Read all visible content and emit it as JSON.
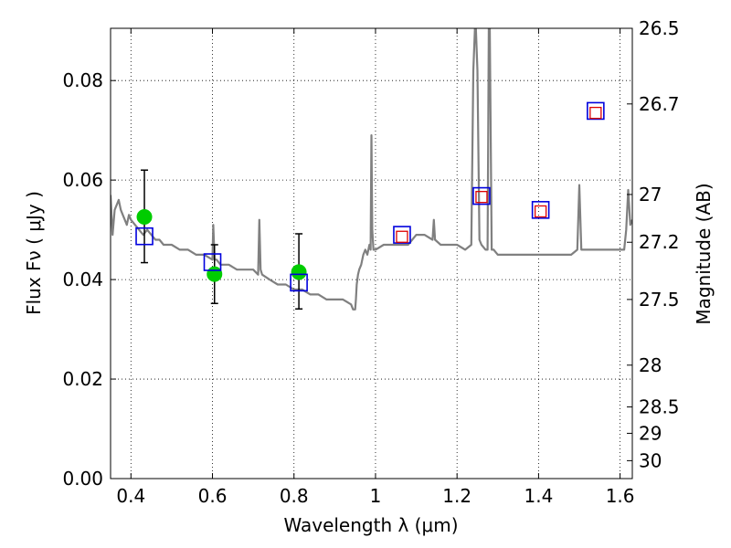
{
  "chart_data": {
    "type": "scatter",
    "xlabel": "Wavelength  λ (μm)",
    "ylabel": "Flux  Fν  ( μJy )",
    "ylabel_right": "Magnitude (AB)",
    "xlim": [
      0.35,
      1.63
    ],
    "ylim": [
      0.0,
      0.0905
    ],
    "grid": true,
    "x_ticks": [
      0.4,
      0.6,
      0.8,
      1.0,
      1.2,
      1.4,
      1.6
    ],
    "x_tick_labels": [
      "0.4",
      "0.6",
      "0.8",
      "1",
      "1.2",
      "1.4",
      "1.6"
    ],
    "y_ticks": [
      0.0,
      0.02,
      0.04,
      0.06,
      0.08
    ],
    "y_tick_labels": [
      "0.00",
      "0.02",
      "0.04",
      "0.06",
      "0.08"
    ],
    "right_ticks": [
      {
        "label": "26.5",
        "flux": 0.0905
      },
      {
        "label": "26.7",
        "flux": 0.0753
      },
      {
        "label": "27",
        "flux": 0.0571
      },
      {
        "label": "27.2",
        "flux": 0.0475
      },
      {
        "label": "27.5",
        "flux": 0.036
      },
      {
        "label": "28",
        "flux": 0.0228
      },
      {
        "label": "28.5",
        "flux": 0.0144
      },
      {
        "label": "29",
        "flux": 0.0091
      },
      {
        "label": "30",
        "flux": 0.0036
      }
    ],
    "series": [
      {
        "kind": "line",
        "color": "#808080",
        "x": [
          0.35,
          0.355,
          0.36,
          0.365,
          0.37,
          0.375,
          0.38,
          0.385,
          0.39,
          0.395,
          0.4,
          0.41,
          0.42,
          0.43,
          0.44,
          0.45,
          0.46,
          0.47,
          0.48,
          0.49,
          0.5,
          0.52,
          0.54,
          0.56,
          0.58,
          0.6,
          0.602,
          0.605,
          0.61,
          0.62,
          0.64,
          0.66,
          0.68,
          0.7,
          0.712,
          0.715,
          0.718,
          0.722,
          0.74,
          0.76,
          0.78,
          0.8,
          0.82,
          0.84,
          0.86,
          0.88,
          0.9,
          0.92,
          0.94,
          0.945,
          0.95,
          0.952,
          0.954,
          0.957,
          0.96,
          0.965,
          0.97,
          0.975,
          0.98,
          0.985,
          0.988,
          0.99,
          0.992,
          0.995,
          1.0,
          1.02,
          1.04,
          1.06,
          1.08,
          1.1,
          1.12,
          1.14,
          1.143,
          1.146,
          1.16,
          1.18,
          1.2,
          1.22,
          1.235,
          1.24,
          1.245,
          1.25,
          1.255,
          1.26,
          1.27,
          1.275,
          1.278,
          1.28,
          1.285,
          1.29,
          1.3,
          1.32,
          1.34,
          1.36,
          1.38,
          1.4,
          1.42,
          1.44,
          1.46,
          1.48,
          1.495,
          1.5,
          1.505,
          1.51,
          1.52,
          1.54,
          1.56,
          1.58,
          1.6,
          1.61,
          1.615,
          1.62,
          1.625,
          1.63
        ],
        "y": [
          0.057,
          0.049,
          0.054,
          0.055,
          0.056,
          0.054,
          0.053,
          0.052,
          0.051,
          0.053,
          0.052,
          0.051,
          0.05,
          0.049,
          0.05,
          0.049,
          0.048,
          0.048,
          0.047,
          0.047,
          0.047,
          0.046,
          0.046,
          0.045,
          0.045,
          0.044,
          0.051,
          0.044,
          0.044,
          0.043,
          0.043,
          0.042,
          0.042,
          0.042,
          0.041,
          0.052,
          0.042,
          0.041,
          0.04,
          0.039,
          0.039,
          0.038,
          0.038,
          0.037,
          0.037,
          0.036,
          0.036,
          0.036,
          0.035,
          0.034,
          0.034,
          0.036,
          0.039,
          0.041,
          0.042,
          0.043,
          0.045,
          0.046,
          0.045,
          0.047,
          0.046,
          0.069,
          0.05,
          0.046,
          0.046,
          0.047,
          0.047,
          0.047,
          0.047,
          0.049,
          0.049,
          0.048,
          0.052,
          0.048,
          0.047,
          0.047,
          0.047,
          0.046,
          0.047,
          0.082,
          0.093,
          0.082,
          0.048,
          0.047,
          0.046,
          0.046,
          0.093,
          0.093,
          0.046,
          0.046,
          0.045,
          0.045,
          0.045,
          0.045,
          0.045,
          0.045,
          0.045,
          0.045,
          0.045,
          0.045,
          0.046,
          0.059,
          0.046,
          0.046,
          0.046,
          0.046,
          0.046,
          0.046,
          0.046,
          0.046,
          0.05,
          0.058,
          0.051,
          0.052
        ]
      },
      {
        "kind": "errorbar",
        "color": "#000000",
        "x": [
          0.433,
          0.605,
          0.812
        ],
        "y": [
          0.0526,
          0.0411,
          0.0415
        ],
        "yerr_low": [
          0.0434,
          0.0352,
          0.0341
        ],
        "yerr_high": [
          0.062,
          0.047,
          0.0492
        ]
      },
      {
        "kind": "scatter",
        "marker": "circle",
        "color": "#00cc00",
        "x": [
          0.433,
          0.605,
          0.812
        ],
        "y": [
          0.0526,
          0.0411,
          0.0415
        ]
      },
      {
        "kind": "scatter",
        "marker": "square-open",
        "color": "#0000dd",
        "x": [
          0.433,
          0.6,
          0.812,
          1.065,
          1.26,
          1.405,
          1.54
        ],
        "y": [
          0.0487,
          0.0435,
          0.0394,
          0.049,
          0.0568,
          0.054,
          0.0739
        ]
      },
      {
        "kind": "scatter",
        "marker": "square-small",
        "color": "#dd0000",
        "x": [
          1.065,
          1.26,
          1.405,
          1.54
        ],
        "y": [
          0.0486,
          0.0566,
          0.0537,
          0.0735
        ]
      }
    ]
  }
}
